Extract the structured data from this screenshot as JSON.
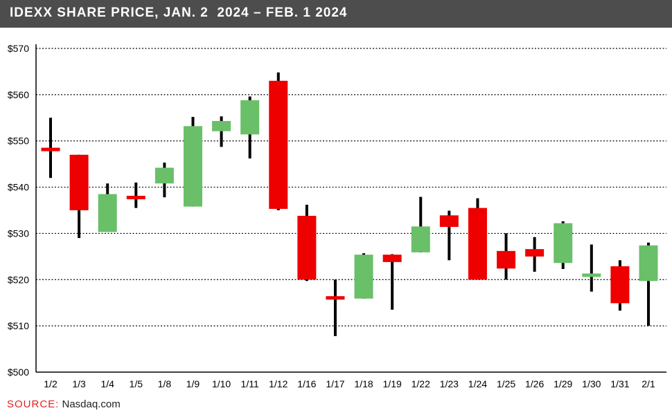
{
  "header": {
    "title": "IDEXX SHARE PRICE, JAN. 2  2024 – FEB. 1 2024"
  },
  "footer": {
    "source_label": "SOURCE:",
    "source_text": " Nasdaq.com"
  },
  "colors": {
    "up": "#6abf69",
    "down": "#ee0000",
    "wick": "#000000",
    "title_bar": "#4d4d4d",
    "source_label": "#e41e1e"
  },
  "chart_data": {
    "type": "candlestick",
    "title": "IDEXX SHARE PRICE, JAN. 2  2024 – FEB. 1 2024",
    "ylim": [
      500,
      570
    ],
    "y_ticks": [
      500,
      510,
      520,
      530,
      540,
      550,
      560,
      570
    ],
    "y_tick_labels": [
      "$500",
      "$510",
      "$520",
      "$530",
      "$540",
      "$550",
      "$560",
      "$570"
    ],
    "grid": "horizontal dotted",
    "categories": [
      "1/2",
      "1/3",
      "1/4",
      "1/5",
      "1/8",
      "1/9",
      "1/10",
      "1/11",
      "1/12",
      "1/16",
      "1/17",
      "1/18",
      "1/19",
      "1/22",
      "1/23",
      "1/24",
      "1/25",
      "1/26",
      "1/29",
      "1/30",
      "1/31",
      "2/1"
    ],
    "candles": [
      {
        "date": "1/2",
        "open": 548.5,
        "close": 547.8,
        "high": 555.0,
        "low": 542.0
      },
      {
        "date": "1/3",
        "open": 547.0,
        "close": 535.0,
        "high": 547.0,
        "low": 529.0
      },
      {
        "date": "1/4",
        "open": 530.3,
        "close": 538.5,
        "high": 540.8,
        "low": 530.3
      },
      {
        "date": "1/5",
        "open": 538.0,
        "close": 537.5,
        "high": 541.0,
        "low": 535.5
      },
      {
        "date": "1/8",
        "open": 540.8,
        "close": 544.2,
        "high": 545.3,
        "low": 537.8
      },
      {
        "date": "1/9",
        "open": 535.8,
        "close": 553.2,
        "high": 555.2,
        "low": 535.8
      },
      {
        "date": "1/10",
        "open": 552.1,
        "close": 554.3,
        "high": 555.3,
        "low": 548.7
      },
      {
        "date": "1/11",
        "open": 551.4,
        "close": 558.8,
        "high": 559.6,
        "low": 546.2
      },
      {
        "date": "1/12",
        "open": 563.0,
        "close": 535.3,
        "high": 564.8,
        "low": 535.0
      },
      {
        "date": "1/16",
        "open": 533.8,
        "close": 520.0,
        "high": 536.2,
        "low": 519.7
      },
      {
        "date": "1/17",
        "open": 516.3,
        "close": 515.8,
        "high": 520.0,
        "low": 507.8
      },
      {
        "date": "1/18",
        "open": 515.9,
        "close": 525.4,
        "high": 525.7,
        "low": 515.9
      },
      {
        "date": "1/19",
        "open": 525.4,
        "close": 523.8,
        "high": 525.5,
        "low": 513.5
      },
      {
        "date": "1/22",
        "open": 525.9,
        "close": 531.5,
        "high": 537.9,
        "low": 525.9
      },
      {
        "date": "1/23",
        "open": 533.9,
        "close": 531.4,
        "high": 534.9,
        "low": 524.2
      },
      {
        "date": "1/24",
        "open": 535.5,
        "close": 520.0,
        "high": 537.6,
        "low": 520.0
      },
      {
        "date": "1/25",
        "open": 526.2,
        "close": 522.4,
        "high": 530.0,
        "low": 520.0
      },
      {
        "date": "1/26",
        "open": 526.6,
        "close": 525.0,
        "high": 529.2,
        "low": 521.7
      },
      {
        "date": "1/29",
        "open": 523.6,
        "close": 532.2,
        "high": 532.6,
        "low": 522.3
      },
      {
        "date": "1/30",
        "open": 520.7,
        "close": 521.2,
        "high": 527.6,
        "low": 517.4
      },
      {
        "date": "1/31",
        "open": 522.9,
        "close": 514.9,
        "high": 524.2,
        "low": 513.3
      },
      {
        "date": "2/1",
        "open": 519.7,
        "close": 527.4,
        "high": 528.0,
        "low": 510.0
      }
    ]
  }
}
